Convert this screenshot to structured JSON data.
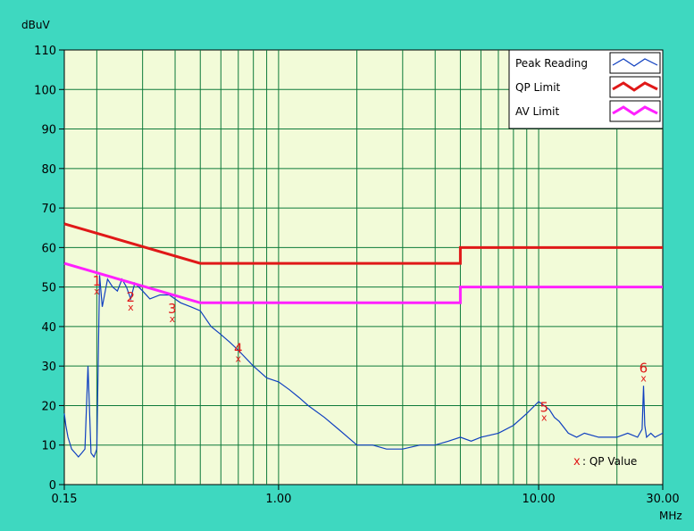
{
  "chart_data": {
    "type": "line",
    "y_unit_label": "dBuV",
    "x_unit_label": "MHz",
    "xscale": "log",
    "xlim": [
      0.15,
      30.0
    ],
    "ylim": [
      0,
      110
    ],
    "grid": true,
    "y_ticks": [
      0,
      10,
      20,
      30,
      40,
      50,
      60,
      70,
      80,
      90,
      100,
      110
    ],
    "y_tick_labels": [
      "0",
      "10",
      "20",
      "30",
      "40",
      "50",
      "60",
      "70",
      "80",
      "90",
      "100",
      "110"
    ],
    "x_tick_labels": [
      {
        "value": 0.15,
        "label": "0.15"
      },
      {
        "value": 1.0,
        "label": "1.00"
      },
      {
        "value": 10.0,
        "label": "10.00"
      },
      {
        "value": 30.0,
        "label": "30.00"
      }
    ],
    "series": [
      {
        "name": "Peak Reading",
        "color": "#1040c0",
        "x": [
          0.15,
          0.152,
          0.155,
          0.16,
          0.165,
          0.17,
          0.175,
          0.18,
          0.185,
          0.19,
          0.195,
          0.2,
          0.205,
          0.21,
          0.22,
          0.23,
          0.24,
          0.25,
          0.26,
          0.27,
          0.28,
          0.3,
          0.32,
          0.35,
          0.38,
          0.42,
          0.46,
          0.5,
          0.55,
          0.6,
          0.65,
          0.7,
          0.8,
          0.9,
          1.0,
          1.1,
          1.2,
          1.3,
          1.5,
          1.7,
          2.0,
          2.3,
          2.6,
          3.0,
          3.5,
          4.0,
          4.5,
          5.0,
          5.5,
          6.0,
          7.0,
          8.0,
          9.0,
          10.0,
          10.5,
          11.0,
          11.5,
          12.0,
          13.0,
          14.0,
          15.0,
          17.0,
          20.0,
          22.0,
          24.0,
          25.0,
          25.3,
          25.6,
          26.0,
          27.0,
          28.0,
          30.0
        ],
        "y": [
          18,
          15,
          12,
          9,
          8,
          7,
          8,
          9,
          30,
          8,
          7,
          9,
          53,
          45,
          52,
          50,
          49,
          52,
          50,
          47,
          51,
          49,
          47,
          48,
          48,
          46,
          45,
          44,
          40,
          38,
          36,
          34,
          30,
          27,
          26,
          24,
          22,
          20,
          17,
          14,
          10,
          10,
          9,
          9,
          10,
          10,
          11,
          12,
          11,
          12,
          13,
          15,
          18,
          21,
          20,
          19,
          17,
          16,
          13,
          12,
          13,
          12,
          12,
          13,
          12,
          14,
          25,
          15,
          12,
          13,
          12,
          13
        ]
      },
      {
        "name": "QP Limit",
        "color": "#e01818",
        "x": [
          0.15,
          0.5,
          5.0,
          5.0,
          30.0
        ],
        "y": [
          66,
          56,
          56,
          60,
          60
        ]
      },
      {
        "name": "AV Limit",
        "color": "#ff20ff",
        "x": [
          0.15,
          0.5,
          5.0,
          5.0,
          30.0
        ],
        "y": [
          56,
          46,
          46,
          50,
          50
        ]
      }
    ],
    "qp_points": [
      {
        "label": "1",
        "x": 0.2,
        "y": 49
      },
      {
        "label": "2",
        "x": 0.27,
        "y": 45
      },
      {
        "label": "3",
        "x": 0.39,
        "y": 42
      },
      {
        "label": "4",
        "x": 0.7,
        "y": 32
      },
      {
        "label": "5",
        "x": 10.5,
        "y": 17
      },
      {
        "label": "6",
        "x": 25.3,
        "y": 27
      }
    ],
    "qp_marker_color": "#e01818",
    "legend": {
      "placement": "top-right",
      "entries": [
        "Peak Reading",
        "QP Limit",
        "AV Limit"
      ]
    },
    "annotation": {
      "marker": "x",
      "text": ": QP Value"
    },
    "colors": {
      "background": "#3ed8c0",
      "plot_background": "#f2fbd8",
      "grid": "#0e7a3a",
      "axis_text": "#000000"
    }
  }
}
